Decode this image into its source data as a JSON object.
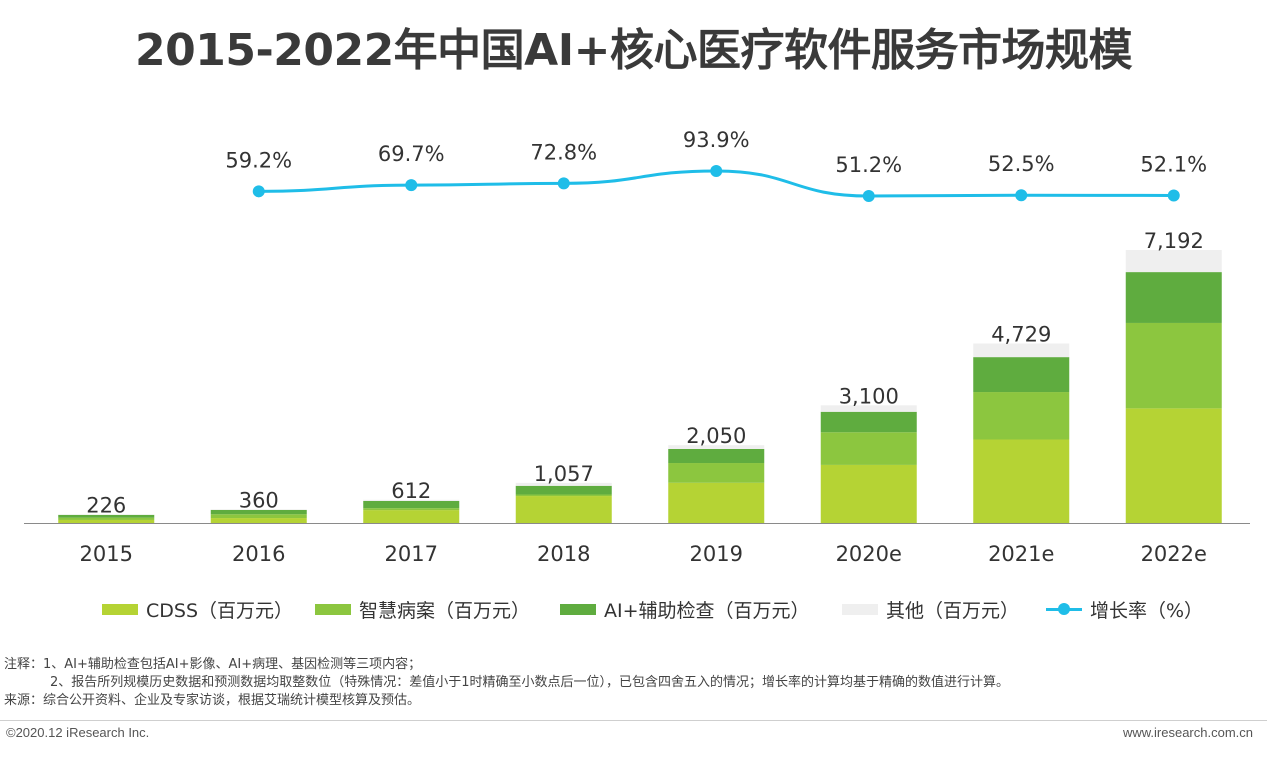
{
  "page": {
    "title": "2015-2022年中国AI+核心医疗软件服务市场规模",
    "copyright": "©2020.12 iResearch Inc.",
    "website": "www.iresearch.com.cn",
    "notes": [
      "注释：1、AI+辅助检查包括AI+影像、AI+病理、基因检测等三项内容；",
      "2、报告所列规模历史数据和预测数据均取整数位（特殊情况：差值小于1时精确至小数点后一位），已包含四舍五入的情况；增长率的计算均基于精确的数值进行计算。",
      "来源：综合公开资料、企业及专家访谈，根据艾瑞统计模型核算及预估。"
    ]
  },
  "chart_data": {
    "type": "bar",
    "stacked": true,
    "title": "2015-2022年中国AI+核心医疗软件服务市场规模",
    "categories": [
      "2015",
      "2016",
      "2017",
      "2018",
      "2019",
      "2020e",
      "2021e",
      "2022e"
    ],
    "totals": [
      226,
      360,
      612,
      1057,
      2050,
      3100,
      4729,
      7192
    ],
    "total_labels": [
      "226",
      "360",
      "612",
      "1,057",
      "2,050",
      "3,100",
      "4,729",
      "7,192"
    ],
    "series": [
      {
        "name": "CDSS（百万元）",
        "color": "#b5d334",
        "values": [
          80,
          130,
          340,
          710,
          1060,
          1530,
          2200,
          3020
        ]
      },
      {
        "name": "智慧病案（百万元）",
        "color": "#8cc63f",
        "values": [
          60,
          100,
          50,
          40,
          520,
          860,
          1250,
          2250
        ]
      },
      {
        "name": "AI+辅助检查（百万元）",
        "color": "#5fac3f",
        "values": [
          75,
          115,
          190,
          230,
          370,
          540,
          920,
          1340
        ]
      },
      {
        "name": "其他（百万元）",
        "color": "#efefef",
        "values": [
          11,
          15,
          32,
          77,
          100,
          170,
          359,
          582
        ]
      }
    ],
    "growth": {
      "name": "增长率（%）",
      "color": "#1fbde8",
      "values": [
        null,
        59.2,
        69.7,
        72.8,
        93.9,
        51.2,
        52.5,
        52.1
      ],
      "labels": [
        "",
        "59.2%",
        "69.7%",
        "72.8%",
        "93.9%",
        "51.2%",
        "52.5%",
        "52.1%"
      ]
    },
    "ylim": [
      0,
      7500
    ],
    "grid": false,
    "legend_position": "bottom"
  }
}
